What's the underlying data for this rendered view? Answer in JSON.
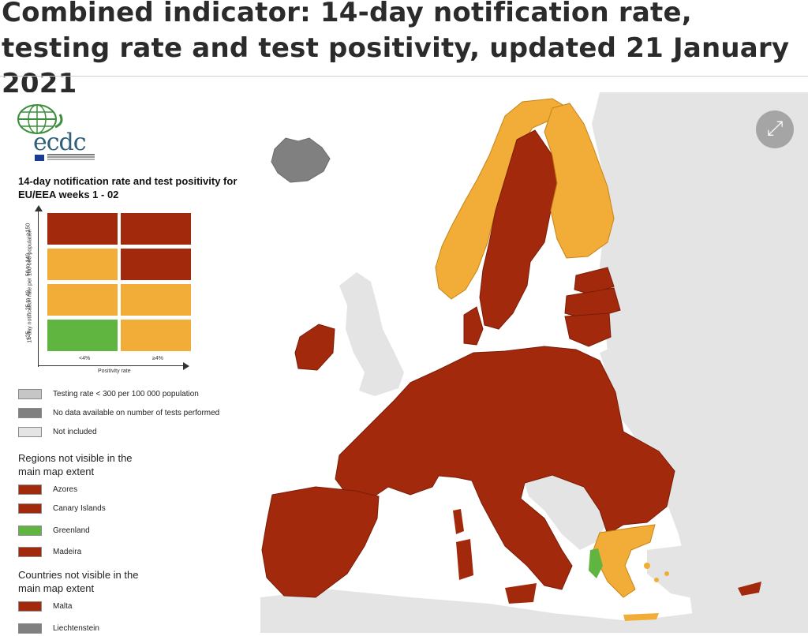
{
  "title": "Combined indicator: 14-day notification rate, testing rate and test positivity, updated 21 January 2021",
  "colors": {
    "dark_red": "#a3290c",
    "orange": "#f2ad38",
    "green": "#5fb53f",
    "light_grey": "#c6c6c6",
    "dark_grey": "#808080",
    "not_included": "#e4e4e4",
    "sea": "#ffffff",
    "border": "#7a1c08"
  },
  "logo": {
    "text": "ecdc"
  },
  "legend": {
    "heading": "14-day notification rate and test positivity for EU/EEA weeks 1 - 02",
    "y_axis_label": "14-day notification rate per 100 000 population",
    "y_ticks": [
      "≥150",
      "50 to 149",
      "25 to 49",
      "<25"
    ],
    "x_axis_label": "Positivity rate",
    "x_ticks": [
      "<4%",
      "≥4%"
    ],
    "matrix": [
      [
        "dark_red",
        "dark_red"
      ],
      [
        "orange",
        "dark_red"
      ],
      [
        "orange",
        "orange"
      ],
      [
        "green",
        "orange"
      ]
    ],
    "items": [
      {
        "label": "Testing rate < 300 per 100 000 population",
        "color": "light_grey"
      },
      {
        "label": "No data available on number of tests performed",
        "color": "dark_grey"
      },
      {
        "label": "Not included",
        "color": "not_included"
      }
    ],
    "regions_title": "Regions not visible in the main map extent",
    "regions": [
      {
        "label": "Azores",
        "color": "dark_red"
      },
      {
        "label": "Canary Islands",
        "color": "dark_red"
      },
      {
        "label": "Greenland",
        "color": "green"
      },
      {
        "label": "Madeira",
        "color": "dark_red"
      }
    ],
    "countries_title": "Countries not visible in the main map extent",
    "countries": [
      {
        "label": "Malta",
        "color": "dark_red"
      },
      {
        "label": "Liechtenstein",
        "color": "dark_grey"
      }
    ]
  },
  "expand_icon": "expand-arrows-icon"
}
